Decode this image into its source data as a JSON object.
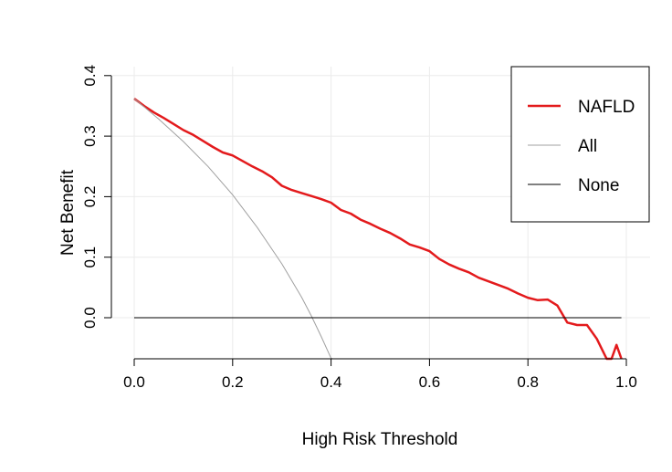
{
  "chart_data": {
    "type": "line",
    "title": "",
    "xlabel": "High Risk Threshold",
    "ylabel": "Net Benefit",
    "xlim": [
      0.0,
      1.0
    ],
    "ylim": [
      -0.07,
      0.4
    ],
    "grid": true,
    "legend_position": "top-right",
    "x_ticks": [
      "0.0",
      "0.2",
      "0.4",
      "0.6",
      "0.8",
      "1.0"
    ],
    "y_ticks": [
      "0.0",
      "0.1",
      "0.2",
      "0.3",
      "0.4"
    ],
    "series": [
      {
        "name": "NAFLD",
        "color": "#e31a1c",
        "x": [
          0.0,
          0.02,
          0.04,
          0.06,
          0.08,
          0.1,
          0.12,
          0.14,
          0.16,
          0.18,
          0.2,
          0.22,
          0.24,
          0.26,
          0.28,
          0.3,
          0.32,
          0.34,
          0.36,
          0.38,
          0.4,
          0.42,
          0.44,
          0.46,
          0.48,
          0.5,
          0.52,
          0.54,
          0.56,
          0.58,
          0.6,
          0.62,
          0.64,
          0.66,
          0.68,
          0.7,
          0.72,
          0.74,
          0.76,
          0.78,
          0.8,
          0.82,
          0.84,
          0.86,
          0.88,
          0.9,
          0.92,
          0.94,
          0.96,
          0.97,
          0.98,
          0.99
        ],
        "y": [
          0.362,
          0.35,
          0.339,
          0.33,
          0.32,
          0.31,
          0.302,
          0.292,
          0.282,
          0.273,
          0.268,
          0.259,
          0.25,
          0.242,
          0.232,
          0.218,
          0.211,
          0.206,
          0.201,
          0.196,
          0.19,
          0.178,
          0.172,
          0.162,
          0.155,
          0.147,
          0.14,
          0.131,
          0.121,
          0.116,
          0.11,
          0.097,
          0.088,
          0.081,
          0.075,
          0.066,
          0.06,
          0.054,
          0.048,
          0.04,
          0.033,
          0.029,
          0.03,
          0.02,
          -0.008,
          -0.012,
          -0.012,
          -0.035,
          -0.068,
          -0.07,
          -0.045,
          -0.068
        ]
      },
      {
        "name": "All",
        "color": "#a0a0a0",
        "x": [
          0.0,
          0.05,
          0.1,
          0.15,
          0.2,
          0.25,
          0.3,
          0.34,
          0.36,
          0.38,
          0.4,
          0.403
        ],
        "y": [
          0.362,
          0.328,
          0.291,
          0.25,
          0.203,
          0.149,
          0.089,
          0.034,
          0.003,
          -0.031,
          -0.067,
          -0.07
        ]
      },
      {
        "name": "None",
        "color": "#000000",
        "x": [
          0.0,
          0.99
        ],
        "y": [
          0.0,
          0.0
        ]
      }
    ]
  }
}
